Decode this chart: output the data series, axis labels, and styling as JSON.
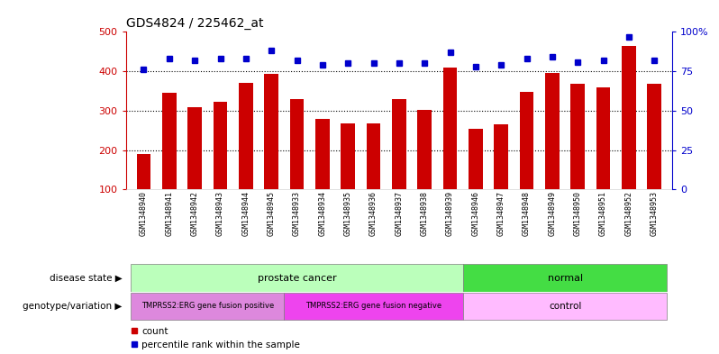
{
  "title": "GDS4824 / 225462_at",
  "samples": [
    "GSM1348940",
    "GSM1348941",
    "GSM1348942",
    "GSM1348943",
    "GSM1348944",
    "GSM1348945",
    "GSM1348933",
    "GSM1348934",
    "GSM1348935",
    "GSM1348936",
    "GSM1348937",
    "GSM1348938",
    "GSM1348939",
    "GSM1348946",
    "GSM1348947",
    "GSM1348948",
    "GSM1348949",
    "GSM1348950",
    "GSM1348951",
    "GSM1348952",
    "GSM1348953"
  ],
  "counts": [
    190,
    345,
    308,
    323,
    370,
    393,
    330,
    280,
    268,
    268,
    330,
    303,
    410,
    253,
    265,
    347,
    395,
    368,
    360,
    465,
    368
  ],
  "percentiles": [
    76,
    83,
    82,
    83,
    83,
    88,
    82,
    79,
    80,
    80,
    80,
    80,
    87,
    78,
    79,
    83,
    84,
    81,
    82,
    97,
    82
  ],
  "bar_color": "#cc0000",
  "dot_color": "#0000cc",
  "ylim_left": [
    100,
    500
  ],
  "ylim_right": [
    0,
    100
  ],
  "yticks_left": [
    100,
    200,
    300,
    400,
    500
  ],
  "yticks_right": [
    0,
    25,
    50,
    75,
    100
  ],
  "disease_state_groups": [
    {
      "label": "prostate cancer",
      "start": 0,
      "end": 12,
      "color": "#bbffbb"
    },
    {
      "label": "normal",
      "start": 13,
      "end": 20,
      "color": "#44dd44"
    }
  ],
  "genotype_groups": [
    {
      "label": "TMPRSS2:ERG gene fusion positive",
      "start": 0,
      "end": 5,
      "color": "#dd88dd"
    },
    {
      "label": "TMPRSS2:ERG gene fusion negative",
      "start": 6,
      "end": 12,
      "color": "#ee44ee"
    },
    {
      "label": "control",
      "start": 13,
      "end": 20,
      "color": "#ffbbff"
    }
  ],
  "xlabel_disease_state": "disease state",
  "xlabel_genotype": "genotype/variation",
  "legend_count": "count",
  "legend_percentile": "percentile rank within the sample",
  "background_color": "#ffffff",
  "tick_label_color": "#cc0000",
  "right_tick_color": "#0000cc",
  "bar_width": 0.55
}
